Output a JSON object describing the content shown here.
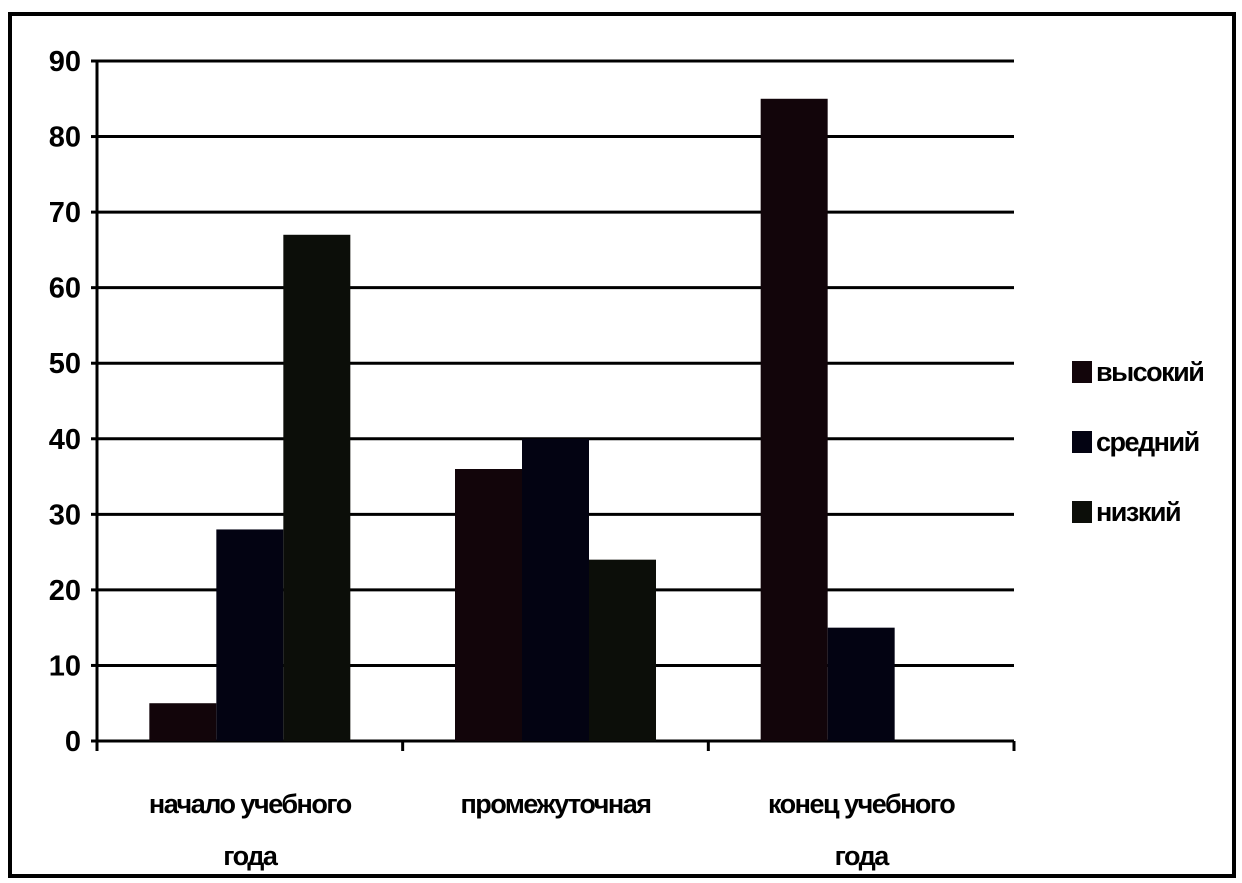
{
  "chart_data": {
    "type": "bar",
    "categories": [
      [
        "начало учебного",
        "года"
      ],
      [
        "промежуточная"
      ],
      [
        "конец учебного",
        "года"
      ]
    ],
    "series": [
      {
        "name": "высокий",
        "values": [
          5,
          36,
          85
        ],
        "color": "#12050a"
      },
      {
        "name": "средний",
        "values": [
          28,
          40,
          15
        ],
        "color": "#030312"
      },
      {
        "name": "низкий",
        "values": [
          67,
          24,
          0
        ],
        "color": "#0c0e09"
      }
    ],
    "ylim": [
      0,
      90
    ],
    "yticks": [
      0,
      10,
      20,
      30,
      40,
      50,
      60,
      70,
      80,
      90
    ],
    "grid": true,
    "legend_position": "right",
    "title": "",
    "xlabel": "",
    "ylabel": ""
  }
}
